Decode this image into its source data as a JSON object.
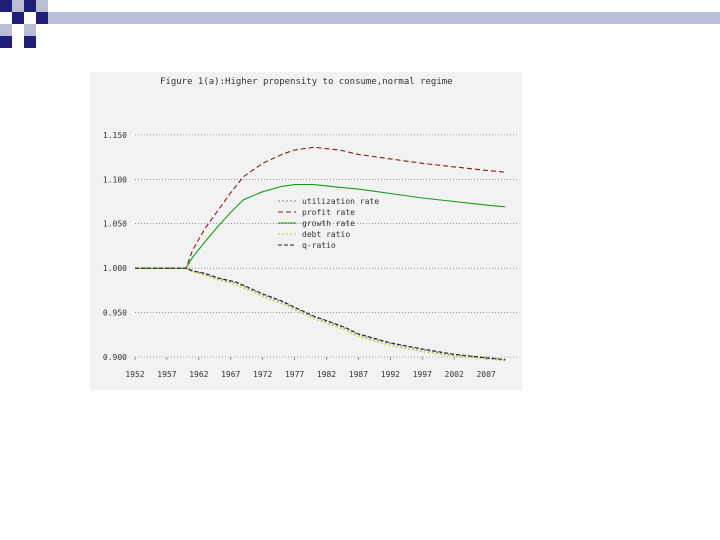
{
  "colors": {
    "deco_dark": "#1f1f7a",
    "deco_light": "#b9bdd6",
    "panel_bg": "#f2f2f2"
  },
  "chart_data": {
    "type": "line",
    "title": "Figure 1(a):Higher propensity to consume,normal regime",
    "xlabel": "",
    "ylabel": "",
    "xlim": [
      1952,
      2012
    ],
    "ylim": [
      0.9,
      1.16
    ],
    "x_ticks": [
      "1952",
      "1957",
      "1962",
      "1967",
      "1972",
      "1977",
      "1982",
      "1987",
      "1992",
      "1997",
      "2002",
      "2007"
    ],
    "y_ticks": [
      "1.150",
      "1.100",
      "1.050",
      "1.000",
      "0.950",
      "0.900"
    ],
    "grid": true,
    "legend_position": "center-right",
    "series": [
      {
        "name": "utilization rate",
        "color": "#7a8fa8",
        "dash": "2,2",
        "x": [
          1952,
          1960,
          1961,
          1963,
          1965,
          1968,
          1972,
          1975,
          1977,
          1980,
          1982,
          1985,
          1987,
          1992,
          1997,
          2002,
          2007,
          2010
        ],
        "y": [
          1.0,
          1.0,
          0.997,
          0.993,
          0.988,
          0.983,
          0.97,
          0.962,
          0.955,
          0.945,
          0.94,
          0.932,
          0.925,
          0.915,
          0.908,
          0.902,
          0.9,
          0.897
        ]
      },
      {
        "name": "profit rate",
        "color": "#8b1a1a",
        "dash": "5,3",
        "x": [
          1952,
          1960,
          1961,
          1963,
          1965,
          1967,
          1969,
          1972,
          1975,
          1977,
          1980,
          1984,
          1987,
          1992,
          1997,
          2002,
          2007,
          2010
        ],
        "y": [
          1.0,
          1.0,
          1.02,
          1.045,
          1.065,
          1.085,
          1.103,
          1.118,
          1.128,
          1.133,
          1.136,
          1.133,
          1.128,
          1.123,
          1.118,
          1.114,
          1.11,
          1.108
        ]
      },
      {
        "name": "growth rate",
        "color": "#1a9a1a",
        "dash": "",
        "x": [
          1952,
          1960,
          1961,
          1963,
          1965,
          1967,
          1969,
          1972,
          1975,
          1977,
          1980,
          1984,
          1987,
          1992,
          1997,
          2002,
          2007,
          2010
        ],
        "y": [
          1.0,
          1.0,
          1.012,
          1.03,
          1.047,
          1.063,
          1.077,
          1.086,
          1.092,
          1.094,
          1.094,
          1.091,
          1.089,
          1.084,
          1.079,
          1.075,
          1.071,
          1.069
        ]
      },
      {
        "name": "debt ratio",
        "color": "#c8c81a",
        "dash": "2,2",
        "x": [
          1952,
          1960,
          1961,
          1963,
          1965,
          1968,
          1972,
          1975,
          1977,
          1980,
          1982,
          1985,
          1987,
          1992,
          1997,
          2002,
          2007,
          2010
        ],
        "y": [
          1.0,
          1.0,
          0.996,
          0.992,
          0.987,
          0.981,
          0.968,
          0.96,
          0.953,
          0.943,
          0.938,
          0.93,
          0.923,
          0.913,
          0.906,
          0.901,
          0.898,
          0.896
        ]
      },
      {
        "name": "q-ratio",
        "color": "#222222",
        "dash": "4,2",
        "x": [
          1952,
          1960,
          1961,
          1963,
          1965,
          1968,
          1972,
          1975,
          1977,
          1980,
          1982,
          1985,
          1987,
          1992,
          1997,
          2002,
          2007,
          2010
        ],
        "y": [
          1.0,
          1.0,
          0.997,
          0.994,
          0.989,
          0.984,
          0.971,
          0.963,
          0.956,
          0.946,
          0.941,
          0.933,
          0.926,
          0.916,
          0.909,
          0.903,
          0.899,
          0.897
        ]
      }
    ]
  }
}
